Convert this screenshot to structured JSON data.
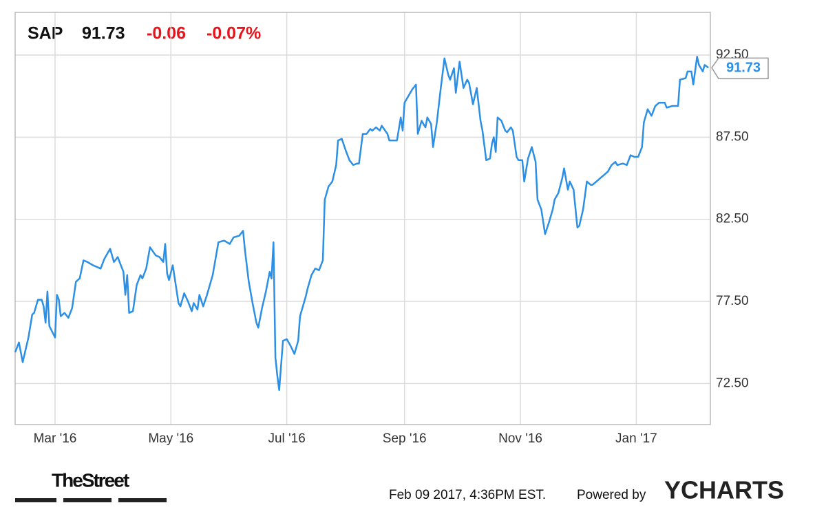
{
  "chart_data": {
    "type": "line",
    "ticker": "SAP",
    "price": "91.73",
    "change": "-0.06",
    "change_pct": "-0.07%",
    "timestamp": "Feb 09 2017, 4:36PM EST.",
    "powered_by": "Powered by",
    "brand": "YCHARTS",
    "publisher": "TheStreet",
    "color": "#2b8fe6",
    "grid": true,
    "xlim": [
      0,
      366
    ],
    "xticks": [
      {
        "value": 21,
        "label": "Mar '16"
      },
      {
        "value": 82,
        "label": "May '16"
      },
      {
        "value": 143,
        "label": "Jul '16"
      },
      {
        "value": 205,
        "label": "Sep '16"
      },
      {
        "value": 266,
        "label": "Nov '16"
      },
      {
        "value": 327,
        "label": "Jan '17"
      }
    ],
    "ylim": [
      70,
      95.1
    ],
    "yticks": [
      {
        "value": 72.5,
        "label": "72.50"
      },
      {
        "value": 77.5,
        "label": "77.50"
      },
      {
        "value": 82.5,
        "label": "82.50"
      },
      {
        "value": 87.5,
        "label": "87.50"
      },
      {
        "value": 92.5,
        "label": "92.50"
      }
    ],
    "x": [
      0,
      2,
      4,
      7,
      9,
      10,
      12,
      14,
      15,
      16,
      17,
      18,
      21,
      22,
      23,
      24,
      26,
      28,
      30,
      32,
      34,
      36,
      38,
      41,
      45,
      47,
      50,
      52,
      54,
      57,
      58,
      59,
      60,
      62,
      64,
      66,
      67,
      69,
      71,
      74,
      76,
      78,
      79,
      80,
      81,
      83,
      86,
      87,
      89,
      91,
      93,
      94,
      96,
      97,
      99,
      101,
      104,
      107,
      110,
      113,
      115,
      118,
      120,
      121,
      123,
      125,
      127,
      128,
      130,
      132,
      134,
      135,
      136,
      137,
      138,
      139,
      141,
      143,
      145,
      147,
      149,
      150,
      153,
      154,
      156,
      158,
      160,
      162,
      163,
      165,
      167,
      169,
      170,
      172,
      174,
      176,
      178,
      180,
      181,
      183,
      185,
      187,
      188,
      190,
      192,
      193,
      196,
      197,
      199,
      201,
      203,
      204,
      205,
      207,
      209,
      211,
      212,
      214,
      216,
      217,
      219,
      220,
      222,
      224,
      226,
      228,
      229,
      231,
      232,
      234,
      236,
      238,
      239,
      241,
      243,
      245,
      246,
      248,
      250,
      251,
      252,
      253,
      254,
      256,
      258,
      259,
      261,
      262,
      264,
      265,
      267,
      268,
      270,
      272,
      274,
      275,
      277,
      279,
      281,
      283,
      284,
      286,
      288,
      289,
      291,
      292,
      294,
      296,
      297,
      299,
      301,
      303,
      304,
      307,
      308,
      310,
      312,
      314,
      316,
      317,
      320,
      322,
      324,
      326,
      328,
      330,
      331,
      333,
      335,
      337,
      339,
      342,
      343,
      346,
      347,
      349,
      350,
      353,
      354,
      356,
      357,
      359,
      360,
      362,
      363,
      365
    ],
    "values": [
      74.4,
      75.0,
      73.8,
      75.3,
      76.7,
      76.8,
      77.6,
      77.6,
      77.2,
      76.2,
      78.1,
      76.0,
      75.3,
      77.9,
      77.6,
      76.6,
      76.8,
      76.5,
      77.1,
      78.7,
      78.9,
      80.0,
      79.9,
      79.7,
      79.5,
      80.1,
      80.7,
      79.9,
      80.2,
      79.3,
      77.9,
      79.1,
      76.8,
      76.9,
      78.5,
      79.1,
      78.9,
      79.5,
      80.8,
      80.3,
      80.2,
      79.9,
      81.0,
      79.2,
      78.8,
      79.7,
      77.4,
      77.2,
      78.0,
      77.5,
      76.9,
      77.4,
      77.0,
      77.9,
      77.2,
      77.9,
      79.1,
      81.1,
      81.2,
      81.0,
      81.4,
      81.5,
      81.8,
      80.6,
      78.7,
      77.4,
      76.2,
      75.9,
      77.1,
      78.1,
      79.3,
      78.9,
      81.1,
      74.1,
      73.0,
      72.1,
      75.1,
      75.2,
      74.8,
      74.3,
      75.1,
      76.6,
      77.8,
      78.3,
      79.1,
      79.5,
      79.4,
      80.0,
      83.7,
      84.5,
      84.8,
      85.8,
      87.3,
      87.4,
      86.7,
      86.1,
      85.8,
      85.9,
      85.9,
      87.7,
      87.7,
      88.0,
      87.9,
      88.1,
      87.9,
      88.2,
      87.7,
      87.3,
      87.3,
      87.3,
      88.7,
      87.9,
      89.6,
      90.0,
      90.4,
      90.7,
      87.7,
      88.5,
      88.1,
      88.7,
      88.3,
      86.9,
      88.4,
      90.4,
      92.3,
      91.3,
      91.0,
      91.7,
      90.2,
      92.1,
      90.5,
      91.0,
      90.8,
      89.5,
      90.5,
      88.5,
      87.9,
      86.1,
      86.2,
      87.1,
      87.5,
      86.6,
      88.7,
      88.5,
      87.9,
      87.8,
      88.1,
      87.9,
      86.3,
      86.1,
      86.1,
      84.8,
      86.2,
      86.9,
      86.0,
      83.7,
      83.1,
      81.6,
      82.3,
      83.1,
      83.7,
      84.1,
      85.0,
      85.6,
      84.3,
      84.8,
      84.3,
      82.0,
      82.1,
      83.1,
      84.8,
      84.6,
      84.6,
      84.9,
      85.0,
      85.2,
      85.4,
      85.8,
      86.0,
      85.8,
      85.9,
      85.8,
      86.4,
      86.3,
      86.3,
      86.9,
      88.4,
      89.2,
      88.8,
      89.4,
      89.6,
      89.6,
      89.3,
      89.4,
      89.4,
      89.4,
      91.0,
      91.1,
      91.5,
      91.5,
      90.7,
      92.4,
      91.9,
      91.5,
      91.9,
      91.73
    ]
  }
}
